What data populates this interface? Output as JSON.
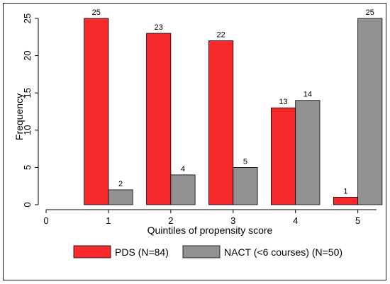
{
  "chart_data": {
    "type": "bar",
    "xlabel": "Quintiles of propensity score",
    "ylabel": "Frequency",
    "x_ticks": [
      "0",
      "1",
      "2",
      "3",
      "4",
      "5"
    ],
    "y_ticks": [
      "0",
      "5",
      "10",
      "15",
      "20",
      "25"
    ],
    "xlim": [
      0,
      5.3
    ],
    "ylim": [
      0,
      25
    ],
    "categories": [
      "1",
      "2",
      "3",
      "4",
      "5"
    ],
    "series": [
      {
        "name": "PDS (N=84)",
        "color": "#f8292b",
        "values": [
          25,
          23,
          22,
          13,
          1
        ]
      },
      {
        "name": "NACT (<6 courses) (N=50)",
        "color": "#929292",
        "values": [
          2,
          4,
          5,
          14,
          25
        ]
      }
    ],
    "data_labels": true,
    "legend_position": "bottom",
    "grid": false
  }
}
